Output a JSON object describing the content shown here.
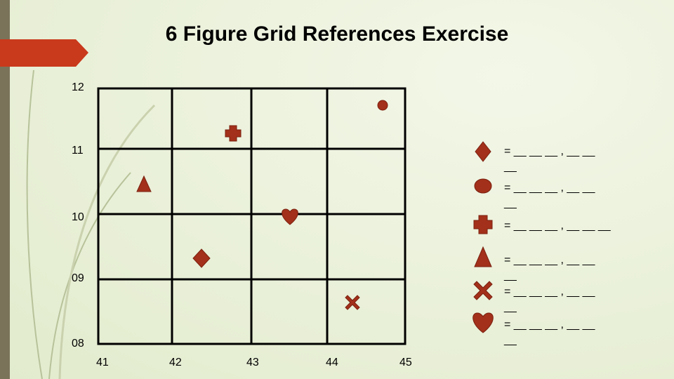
{
  "title": "6 Figure Grid References Exercise",
  "northings": [
    "12",
    "11",
    "10",
    "09",
    "08"
  ],
  "eastings": [
    "41",
    "42",
    "43",
    "44",
    "45"
  ],
  "answers": [
    "= __ __ __ , __ __ __",
    "= __ __ __ , __ __ __",
    "= __ __ __ , __ __ __",
    "= __ __ __ , __ __ __",
    "= __ __ __ , __ __ __",
    "= __ __ __ , __ __ __"
  ]
}
